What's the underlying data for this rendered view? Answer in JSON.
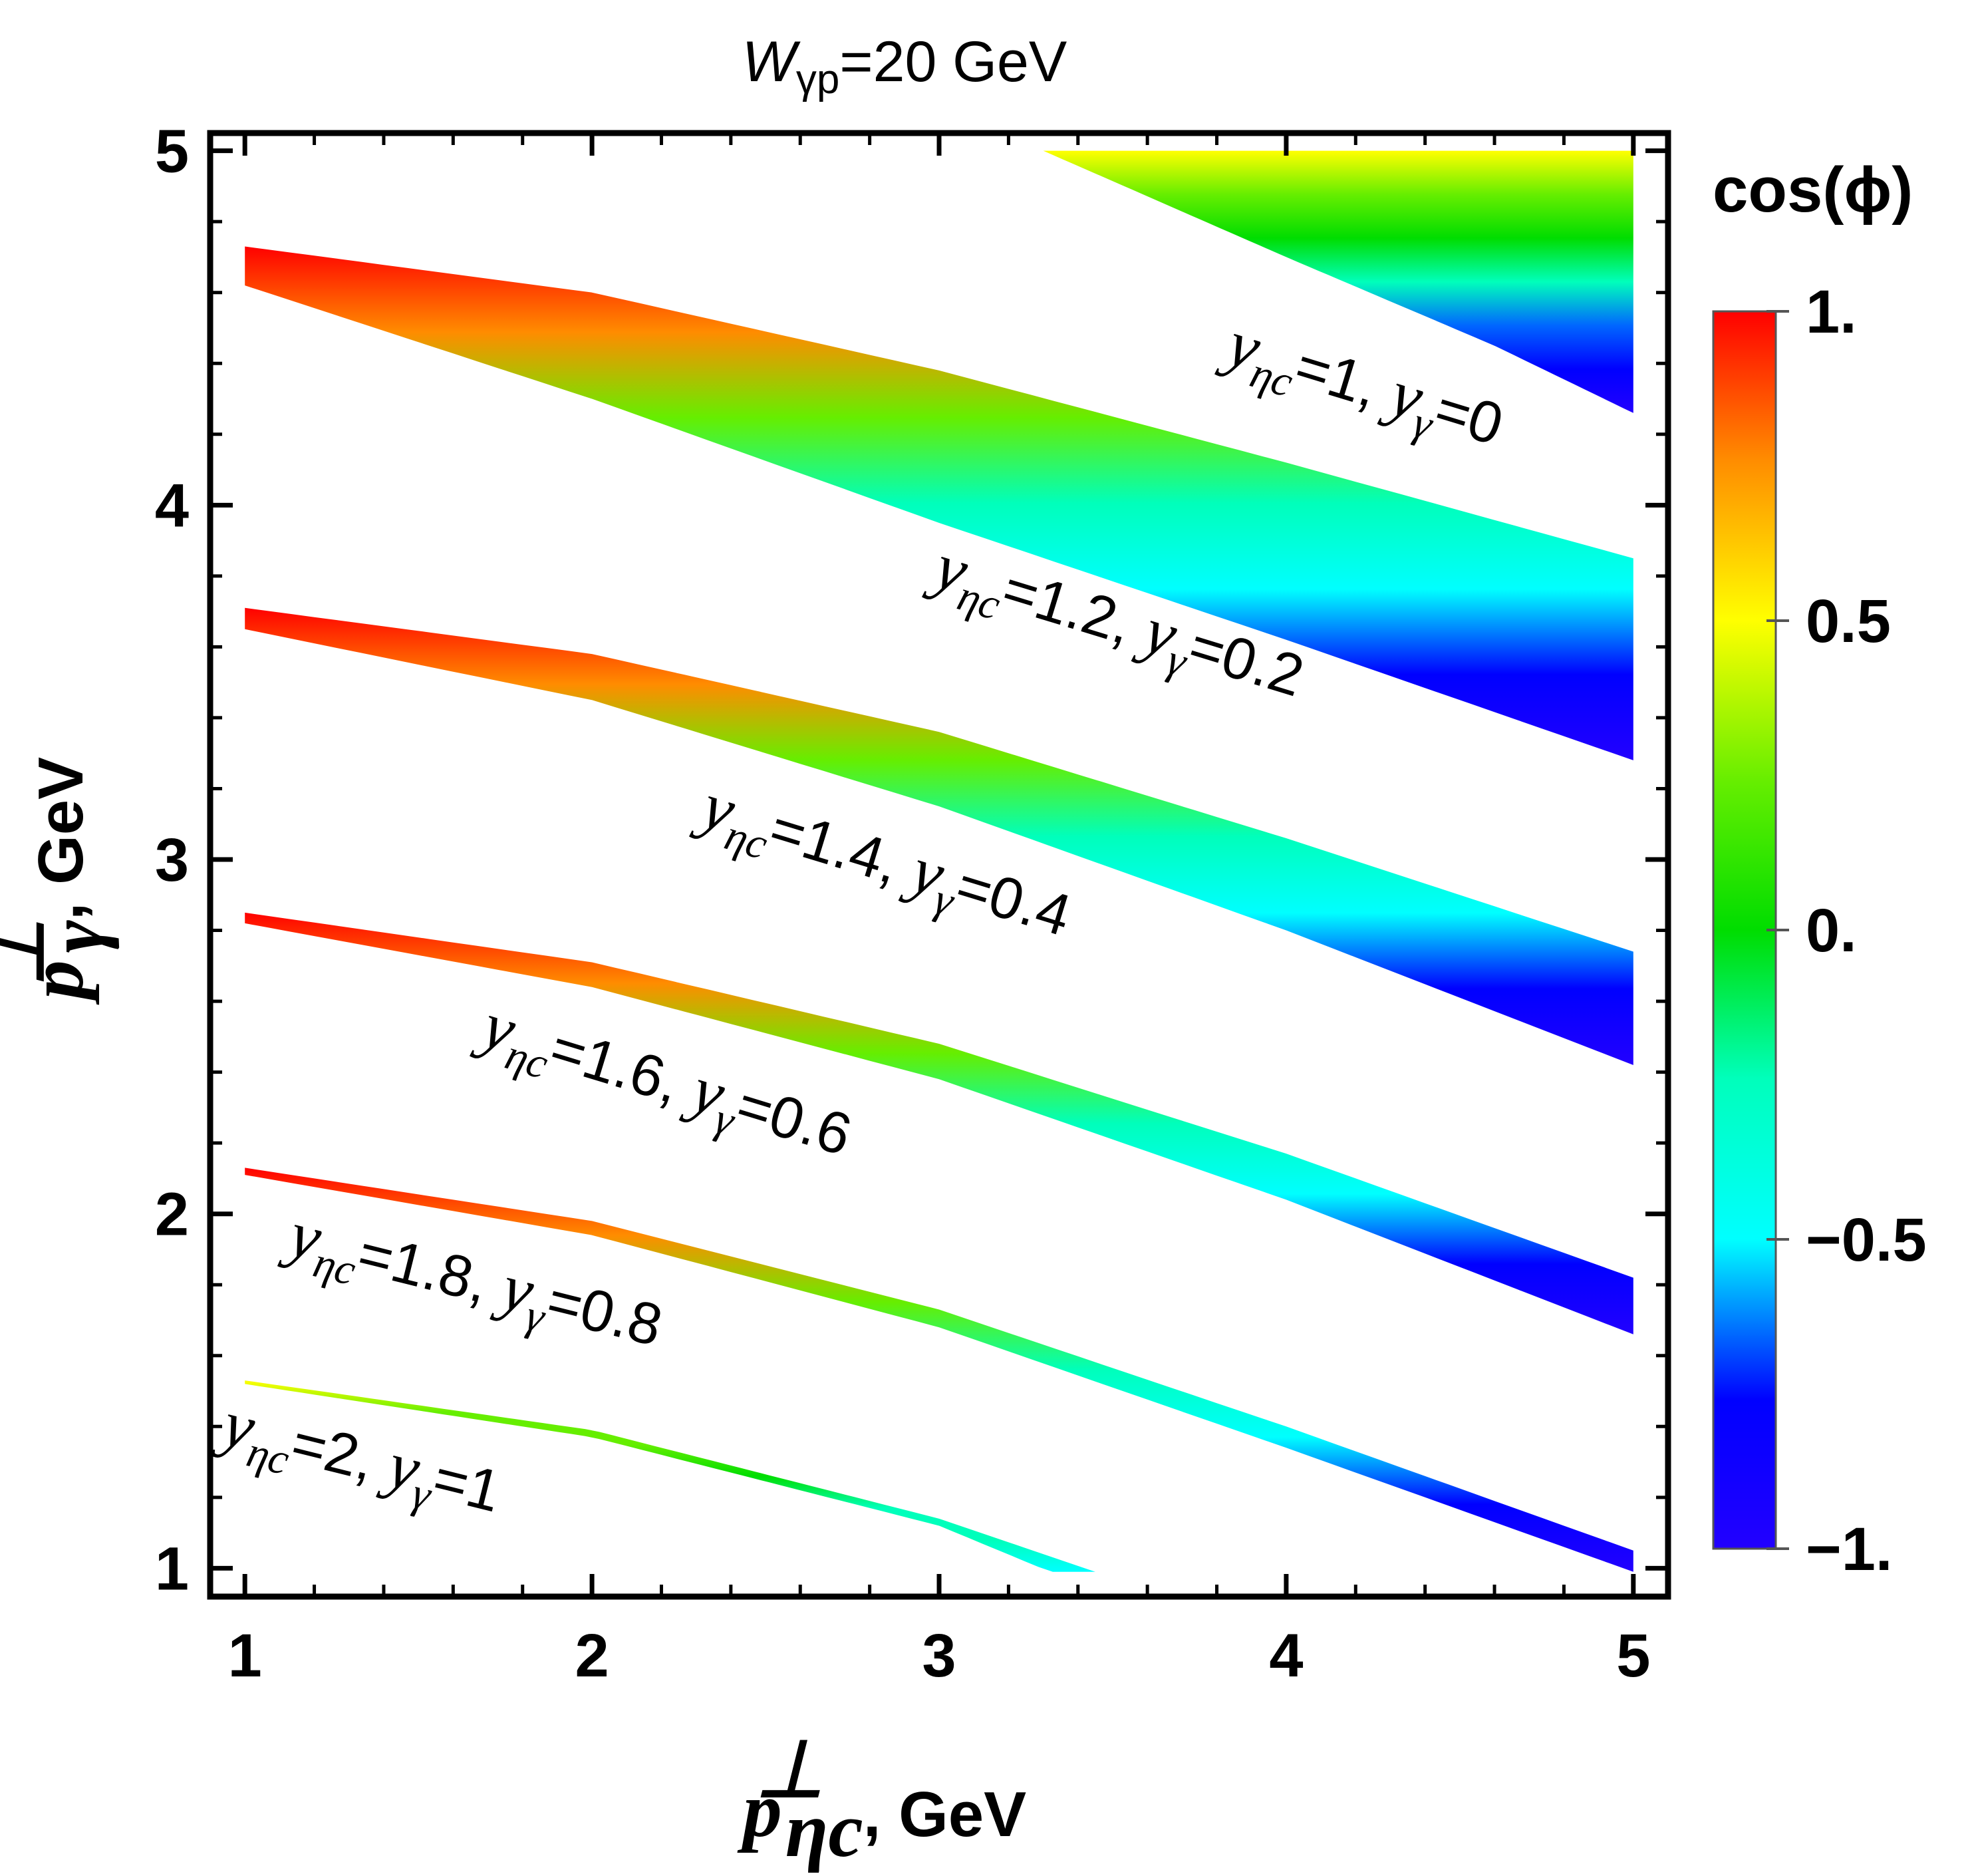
{
  "chart_data": {
    "type": "heatmap",
    "title": "W_γp=20 GeV",
    "title_parts": {
      "symbol": "W",
      "subscript": "γp",
      "rest": "=20 GeV"
    },
    "xlabel": "p⊥ ηc, GeV",
    "xlabel_parts": {
      "symbol": "p",
      "superscript": "⊥",
      "subscript": "ηc",
      "rest": ", GeV"
    },
    "ylabel": "p⊥ γ, GeV",
    "ylabel_parts": {
      "symbol": "p",
      "superscript": "⊥",
      "subscript": "γ",
      "rest": ", GeV"
    },
    "xlim": [
      0.9,
      5.1
    ],
    "ylim": [
      0.92,
      5.05
    ],
    "xticks": [
      1,
      2,
      3,
      4,
      5
    ],
    "xtick_labels": [
      "1",
      "2",
      "3",
      "4",
      "5"
    ],
    "yticks": [
      1,
      2,
      3,
      4,
      5
    ],
    "ytick_labels": [
      "1",
      "2",
      "3",
      "4",
      "5"
    ],
    "colorbar": {
      "title": "cos(ϕ)",
      "range": [
        -1,
        1
      ],
      "ticks": [
        1,
        0.5,
        0,
        -0.5,
        -1
      ],
      "tick_labels": [
        "1.",
        "0.5",
        "0.",
        "−0.5",
        "−1."
      ],
      "colormap": [
        "#ff0000",
        "#ff8c00",
        "#ffff00",
        "#66ee00",
        "#00dd00",
        "#00ffbb",
        "#00ffff",
        "#0066ff",
        "#0000ff",
        "#2200ff"
      ]
    },
    "series": [
      {
        "name": "y_ηc=1, y_γ=0",
        "label": "yηc=1, yγ=0",
        "upper": [
          [
            3.3,
            5.0
          ],
          [
            5.0,
            5.0
          ]
        ],
        "lower": [
          [
            3.3,
            5.0
          ],
          [
            4.0,
            4.7
          ],
          [
            4.6,
            4.45
          ],
          [
            5.0,
            4.26
          ]
        ],
        "cos_top": 0.6,
        "cos_bottom": -1.0
      },
      {
        "name": "y_ηc=1.2, y_γ=0.2",
        "label": "yηc=1.2, yγ=0.2",
        "upper": [
          [
            1.0,
            4.73
          ],
          [
            2.0,
            4.6
          ],
          [
            3.0,
            4.38
          ],
          [
            4.0,
            4.12
          ],
          [
            5.0,
            3.85
          ]
        ],
        "lower": [
          [
            1.0,
            4.62
          ],
          [
            2.0,
            4.3
          ],
          [
            3.0,
            3.95
          ],
          [
            4.0,
            3.62
          ],
          [
            5.0,
            3.28
          ]
        ],
        "cos_top": 1.0,
        "cos_bottom": -1.0
      },
      {
        "name": "y_ηc=1.4, y_γ=0.4",
        "label": "yηc=1.4, yγ=0.4",
        "upper": [
          [
            1.0,
            3.71
          ],
          [
            2.0,
            3.58
          ],
          [
            3.0,
            3.36
          ],
          [
            4.0,
            3.06
          ],
          [
            5.0,
            2.74
          ]
        ],
        "lower": [
          [
            1.0,
            3.65
          ],
          [
            2.0,
            3.45
          ],
          [
            3.0,
            3.15
          ],
          [
            4.0,
            2.8
          ],
          [
            5.0,
            2.42
          ]
        ],
        "cos_top": 1.0,
        "cos_bottom": -1.0
      },
      {
        "name": "y_ηc=1.6, y_γ=0.6",
        "label": "yηc=1.6, yγ=0.6",
        "upper": [
          [
            1.0,
            2.85
          ],
          [
            2.0,
            2.71
          ],
          [
            3.0,
            2.48
          ],
          [
            4.0,
            2.17
          ],
          [
            5.0,
            1.82
          ]
        ],
        "lower": [
          [
            1.0,
            2.82
          ],
          [
            2.0,
            2.64
          ],
          [
            3.0,
            2.38
          ],
          [
            4.0,
            2.04
          ],
          [
            5.0,
            1.66
          ]
        ],
        "cos_top": 1.0,
        "cos_bottom": -1.0
      },
      {
        "name": "y_ηc=1.8, y_γ=0.8",
        "label": "yηc=1.8, yγ=0.8",
        "upper": [
          [
            1.0,
            2.13
          ],
          [
            2.0,
            1.98
          ],
          [
            3.0,
            1.73
          ],
          [
            4.0,
            1.4
          ],
          [
            5.0,
            1.05
          ]
        ],
        "lower": [
          [
            1.0,
            2.11
          ],
          [
            2.0,
            1.94
          ],
          [
            3.0,
            1.68
          ],
          [
            4.0,
            1.34
          ],
          [
            5.0,
            0.99
          ]
        ],
        "cos_top": 1.0,
        "cos_bottom": -1.0
      },
      {
        "name": "y_ηc=2, y_γ=1",
        "label": "yηc=2, yγ=1",
        "upper": [
          [
            1.0,
            1.53
          ],
          [
            2.0,
            1.39
          ],
          [
            3.0,
            1.14
          ],
          [
            3.45,
            0.99
          ]
        ],
        "lower": [
          [
            1.0,
            1.52
          ],
          [
            2.0,
            1.37
          ],
          [
            3.0,
            1.12
          ],
          [
            3.32,
            0.99
          ]
        ],
        "cos_top": 0.5,
        "cos_bottom": -0.3
      }
    ],
    "band_labels": [
      {
        "series": 0,
        "a": "y",
        "asub": "ηc",
        "b": "=1, ",
        "c": "y",
        "csub": "γ",
        "d": "=0"
      },
      {
        "series": 1,
        "a": "y",
        "asub": "ηc",
        "b": "=1.2, ",
        "c": "y",
        "csub": "γ",
        "d": "=0.2"
      },
      {
        "series": 2,
        "a": "y",
        "asub": "ηc",
        "b": "=1.4, ",
        "c": "y",
        "csub": "γ",
        "d": "=0.4"
      },
      {
        "series": 3,
        "a": "y",
        "asub": "ηc",
        "b": "=1.6, ",
        "c": "y",
        "csub": "γ",
        "d": "=0.6"
      },
      {
        "series": 4,
        "a": "y",
        "asub": "ηc",
        "b": "=1.8, ",
        "c": "y",
        "csub": "γ",
        "d": "=0.8"
      },
      {
        "series": 5,
        "a": "y",
        "asub": "ηc",
        "b": "=2, ",
        "c": "y",
        "csub": "γ",
        "d": "=1"
      }
    ]
  }
}
